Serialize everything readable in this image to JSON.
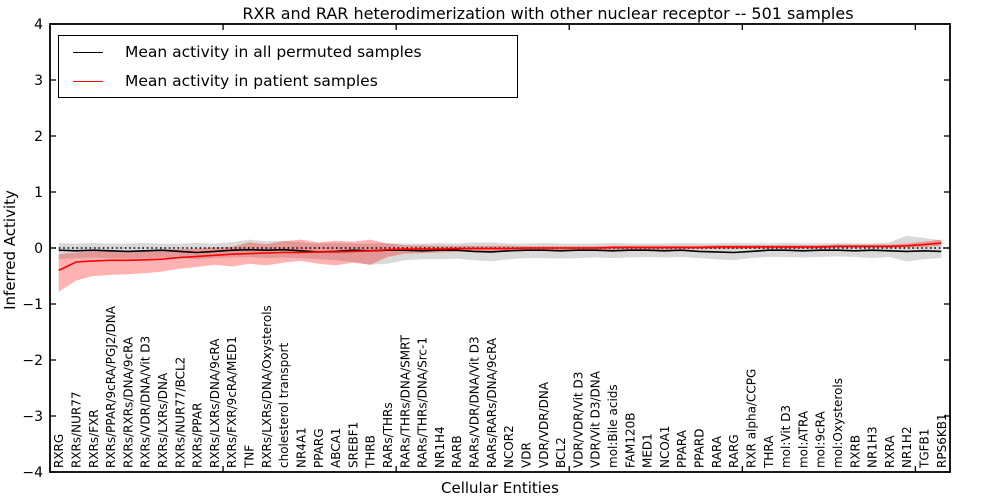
{
  "title": "RXR and RAR heterodimerization with other nuclear receptor -- 501 samples",
  "axes": {
    "xlabel": "Cellular Entities",
    "ylabel": "Inferred Activity",
    "ylim": [
      -4,
      4
    ],
    "yticks": [
      {
        "value": 4,
        "label": "4"
      },
      {
        "value": 3,
        "label": "3"
      },
      {
        "value": 2,
        "label": "2"
      },
      {
        "value": 1,
        "label": "1"
      },
      {
        "value": 0,
        "label": "0"
      },
      {
        "value": -1,
        "label": "−1"
      },
      {
        "value": -2,
        "label": "−2"
      },
      {
        "value": -3,
        "label": "−3"
      },
      {
        "value": -4,
        "label": "−4"
      }
    ],
    "xtick_positions": [
      10,
      20,
      30,
      40,
      50
    ],
    "axis_color": "#000000"
  },
  "legend": {
    "items": [
      {
        "label": "Mean activity in all permuted samples",
        "color": "#000000"
      },
      {
        "label": "Mean activity in patient samples",
        "color": "#ff0000"
      }
    ]
  },
  "chart_data": {
    "type": "line",
    "title": "RXR and RAR heterodimerization with other nuclear receptor -- 501 samples",
    "xlabel": "Cellular Entities",
    "ylabel": "Inferred Activity",
    "ylim": [
      -4,
      4
    ],
    "grid": false,
    "legend_position": "upper left",
    "reference_line": {
      "y": 0,
      "style": "dotted",
      "color": "#000000"
    },
    "categories": [
      "RXRG",
      "RXRs/NUR77",
      "RXRs/FXR",
      "RXRs/PPAR/9cRA/PGJ2/DNA",
      "RXRs/RXRs/DNA/9cRA",
      "RXRs/VDR/DNA/Vit D3",
      "RXRs/LXRs/DNA",
      "RXRs/NUR77/BCL2",
      "RXRs/PPAR",
      "RXRs/LXRs/DNA/9cRA",
      "RXRs/FXR/9cRA/MED1",
      "TNF",
      "RXRs/LXRs/DNA/Oxysterols",
      "cholesterol transport",
      "NR4A1",
      "PPARG",
      "ABCA1",
      "SREBF1",
      "THRB",
      "RARs/THRs",
      "RARs/THRs/DNA/SMRT",
      "RARs/THRs/DNA/Src-1",
      "NR1H4",
      "RARB",
      "RARs/VDR/DNA/Vit D3",
      "RARs/RARs/DNA/9cRA",
      "NCOR2",
      "VDR",
      "VDR/VDR/DNA",
      "BCL2",
      "VDR/VDR/Vit D3",
      "VDR/Vit D3/DNA",
      "mol:Bile acids",
      "FAM120B",
      "MED1",
      "NCOA1",
      "PPARA",
      "PPARD",
      "RARA",
      "RARG",
      "RXR alpha/CCPG",
      "THRA",
      "mol:Vit D3",
      "mol:ATRA",
      "mol:9cRA",
      "mol:Oxysterols",
      "RXRB",
      "NR1H3",
      "RXRA",
      "NR1H2",
      "TGFB1",
      "RPS6KB1"
    ],
    "series": [
      {
        "name": "Mean activity in all permuted samples",
        "color": "#000000",
        "band_color": "rgba(0,0,0,0.15)",
        "values": [
          -0.04,
          -0.05,
          -0.04,
          -0.05,
          -0.06,
          -0.05,
          -0.04,
          -0.06,
          -0.08,
          -0.06,
          -0.04,
          -0.03,
          -0.04,
          -0.03,
          -0.05,
          -0.07,
          -0.06,
          -0.04,
          -0.05,
          -0.04,
          -0.04,
          -0.05,
          -0.04,
          -0.04,
          -0.06,
          -0.07,
          -0.05,
          -0.04,
          -0.04,
          -0.05,
          -0.04,
          -0.04,
          -0.05,
          -0.04,
          -0.04,
          -0.05,
          -0.04,
          -0.06,
          -0.07,
          -0.08,
          -0.06,
          -0.04,
          -0.04,
          -0.05,
          -0.04,
          -0.04,
          -0.05,
          -0.04,
          -0.05,
          -0.06,
          -0.05,
          -0.06
        ],
        "band_upper": [
          0.09,
          0.08,
          0.09,
          0.08,
          0.08,
          0.09,
          0.08,
          0.08,
          0.09,
          0.08,
          0.1,
          0.15,
          0.12,
          0.13,
          0.1,
          0.08,
          0.09,
          0.08,
          0.08,
          0.09,
          0.08,
          0.08,
          0.09,
          0.08,
          0.1,
          0.1,
          0.08,
          0.08,
          0.09,
          0.08,
          0.08,
          0.08,
          0.09,
          0.08,
          0.08,
          0.08,
          0.09,
          0.08,
          0.08,
          0.09,
          0.08,
          0.08,
          0.09,
          0.08,
          0.08,
          0.09,
          0.08,
          0.08,
          0.1,
          0.22,
          0.18,
          0.14
        ],
        "band_lower": [
          -0.2,
          -0.18,
          -0.17,
          -0.18,
          -0.19,
          -0.18,
          -0.17,
          -0.18,
          -0.2,
          -0.18,
          -0.17,
          -0.16,
          -0.18,
          -0.17,
          -0.18,
          -0.2,
          -0.22,
          -0.25,
          -0.3,
          -0.28,
          -0.22,
          -0.2,
          -0.2,
          -0.19,
          -0.22,
          -0.24,
          -0.2,
          -0.18,
          -0.18,
          -0.19,
          -0.18,
          -0.17,
          -0.18,
          -0.17,
          -0.16,
          -0.17,
          -0.16,
          -0.18,
          -0.2,
          -0.22,
          -0.18,
          -0.16,
          -0.16,
          -0.17,
          -0.16,
          -0.15,
          -0.16,
          -0.18,
          -0.16,
          -0.24,
          -0.2,
          -0.18
        ]
      },
      {
        "name": "Mean activity in patient samples",
        "color": "#ff0000",
        "band_color": "rgba(255,0,0,0.30)",
        "values": [
          -0.4,
          -0.25,
          -0.23,
          -0.22,
          -0.22,
          -0.21,
          -0.2,
          -0.17,
          -0.15,
          -0.13,
          -0.11,
          -0.1,
          -0.09,
          -0.08,
          -0.08,
          -0.07,
          -0.07,
          -0.06,
          -0.05,
          -0.03,
          -0.02,
          -0.02,
          -0.02,
          -0.01,
          -0.01,
          -0.01,
          -0.01,
          0.0,
          0.0,
          0.0,
          0.0,
          0.0,
          0.01,
          0.01,
          0.01,
          0.01,
          0.01,
          0.01,
          0.02,
          0.02,
          0.02,
          0.02,
          0.02,
          0.02,
          0.02,
          0.03,
          0.03,
          0.03,
          0.03,
          0.04,
          0.06,
          0.09
        ],
        "band_upper": [
          -0.11,
          -0.08,
          -0.06,
          -0.05,
          -0.05,
          -0.04,
          -0.03,
          -0.02,
          -0.01,
          0.01,
          0.02,
          0.1,
          0.07,
          0.12,
          0.15,
          0.1,
          0.13,
          0.11,
          0.15,
          0.08,
          0.05,
          0.05,
          0.04,
          0.04,
          0.04,
          0.04,
          0.04,
          0.03,
          0.03,
          0.03,
          0.03,
          0.03,
          0.04,
          0.04,
          0.04,
          0.04,
          0.04,
          0.04,
          0.05,
          0.05,
          0.05,
          0.05,
          0.05,
          0.05,
          0.05,
          0.06,
          0.06,
          0.06,
          0.06,
          0.08,
          0.11,
          0.15
        ],
        "band_lower": [
          -0.78,
          -0.58,
          -0.5,
          -0.48,
          -0.47,
          -0.45,
          -0.42,
          -0.37,
          -0.34,
          -0.3,
          -0.33,
          -0.28,
          -0.31,
          -0.26,
          -0.23,
          -0.28,
          -0.31,
          -0.26,
          -0.3,
          -0.16,
          -0.1,
          -0.09,
          -0.08,
          -0.07,
          -0.06,
          -0.06,
          -0.06,
          -0.05,
          -0.05,
          -0.04,
          -0.04,
          -0.04,
          -0.03,
          -0.03,
          -0.03,
          -0.03,
          -0.02,
          -0.02,
          -0.02,
          -0.02,
          -0.01,
          -0.01,
          -0.01,
          -0.01,
          -0.01,
          0.0,
          0.0,
          0.0,
          0.0,
          0.01,
          0.02,
          0.04
        ]
      }
    ]
  }
}
